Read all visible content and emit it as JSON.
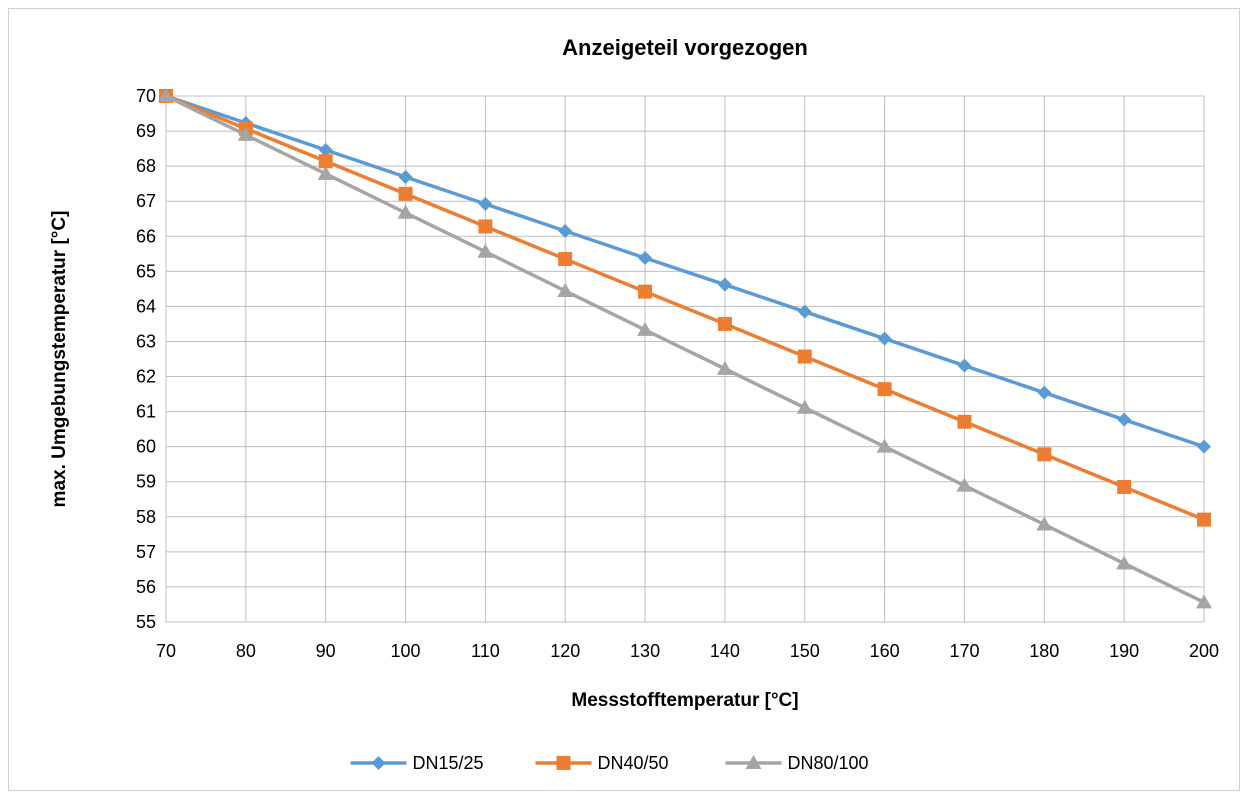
{
  "chart_data": {
    "type": "line",
    "title": "Anzeigeteil vorgezogen",
    "xlabel": "Messstofftemperatur [°C]",
    "ylabel": "max. Umgebungstemperatur [°C]",
    "x": [
      70,
      80,
      90,
      100,
      110,
      120,
      130,
      140,
      150,
      160,
      170,
      180,
      190,
      200
    ],
    "xlim": [
      70,
      200
    ],
    "ylim": [
      55,
      70
    ],
    "x_ticks": [
      "70",
      "80",
      "90",
      "100",
      "110",
      "120",
      "130",
      "140",
      "150",
      "160",
      "170",
      "180",
      "190",
      "200"
    ],
    "y_ticks": [
      "70",
      "69",
      "68",
      "67",
      "66",
      "65",
      "64",
      "63",
      "62",
      "61",
      "60",
      "59",
      "58",
      "57",
      "56",
      "55"
    ],
    "grid": true,
    "legend_position": "bottom",
    "series": [
      {
        "name": "DN15/25",
        "color": "#5b9bd5",
        "marker": "diamond",
        "values": [
          70,
          69.23,
          68.46,
          67.69,
          66.92,
          66.15,
          65.38,
          64.62,
          63.85,
          63.08,
          62.31,
          61.54,
          60.77,
          60.0
        ]
      },
      {
        "name": "DN40/50",
        "color": "#ed7d31",
        "marker": "square",
        "values": [
          70,
          69.07,
          68.14,
          67.21,
          66.28,
          65.35,
          64.42,
          63.5,
          62.57,
          61.64,
          60.71,
          59.78,
          58.85,
          57.92
        ]
      },
      {
        "name": "DN80/100",
        "color": "#a5a5a5",
        "marker": "triangle",
        "values": [
          70,
          68.89,
          67.78,
          66.67,
          65.56,
          64.44,
          63.33,
          62.22,
          61.11,
          60.0,
          58.89,
          57.78,
          56.67,
          55.56
        ]
      }
    ]
  }
}
